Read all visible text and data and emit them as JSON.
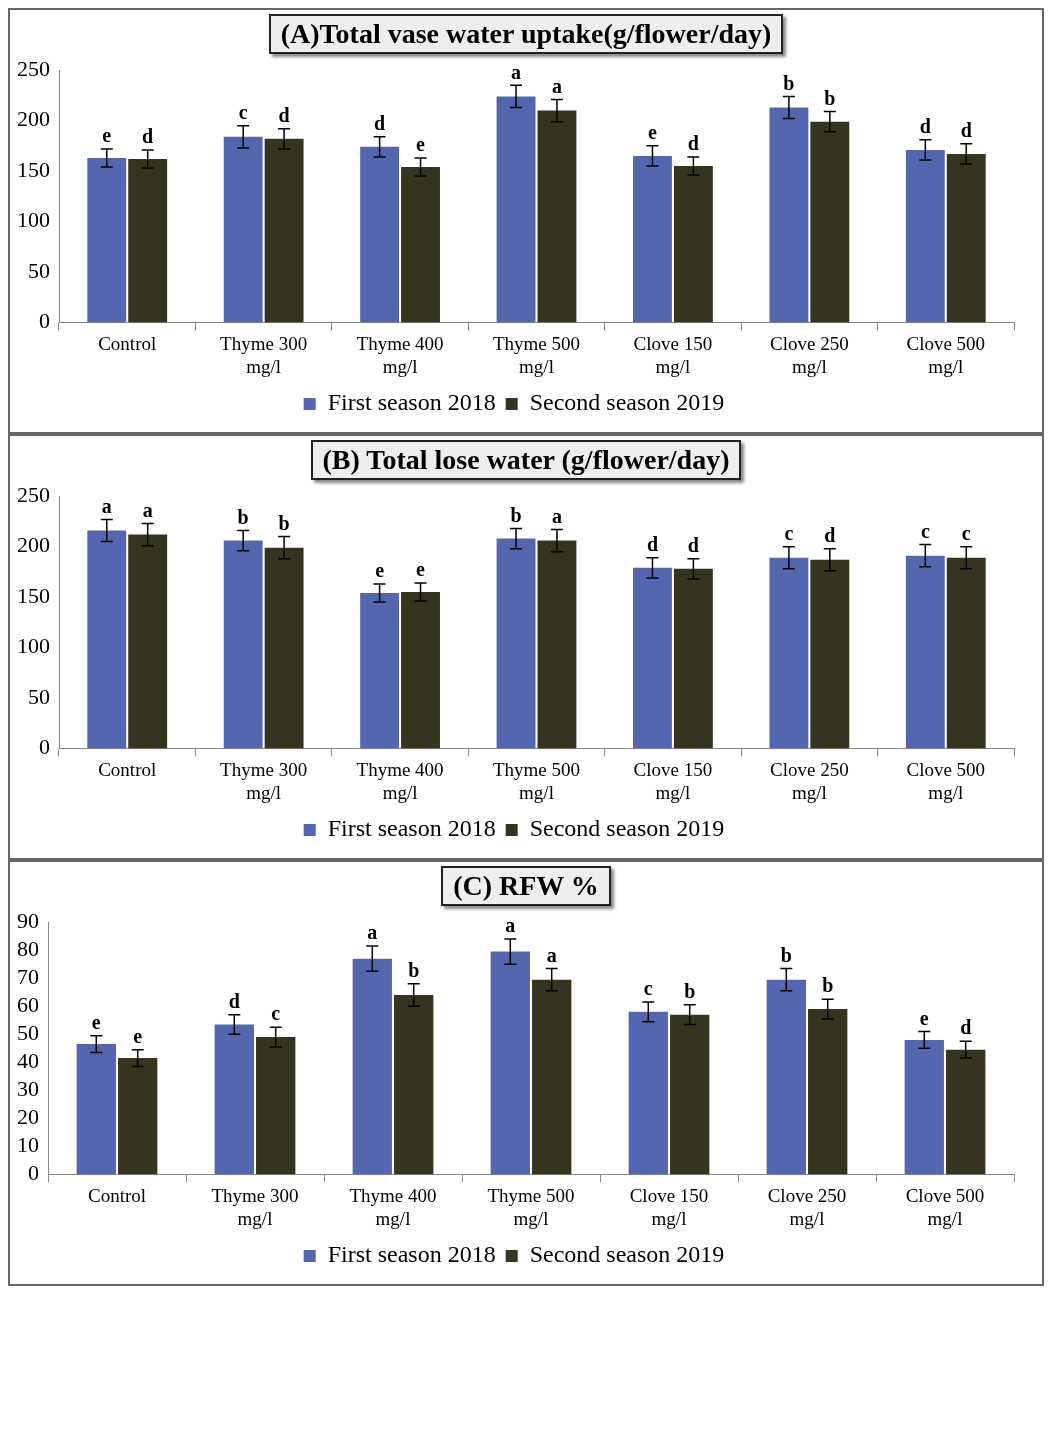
{
  "chart_data": [
    {
      "type": "bar",
      "title": "(A)Total vase water uptake(g/flower/day)",
      "categories": [
        "Control",
        "Thyme 300 mg/l",
        "Thyme 400 mg/l",
        "Thyme 500 mg/l",
        "Clove 150 mg/l",
        "Clove 250 mg/l",
        "Clove 500 mg/l"
      ],
      "ylim": [
        0,
        250
      ],
      "yticks": [
        0,
        50,
        100,
        150,
        200,
        250
      ],
      "grid": false,
      "legend": "bottom",
      "series": [
        {
          "name": "First season 2018",
          "color": "#5566b0",
          "values": [
            163,
            184,
            174,
            224,
            165,
            213,
            171
          ],
          "errors": [
            9,
            11,
            10,
            11,
            10,
            11,
            10
          ],
          "value_labels": [
            "e",
            "c",
            "d",
            "a",
            "e",
            "b",
            "d"
          ]
        },
        {
          "name": "Second season 2019",
          "color": "#35341f",
          "values": [
            162,
            182,
            154,
            210,
            155,
            199,
            167
          ],
          "errors": [
            9,
            10,
            9,
            11,
            9,
            10,
            10
          ],
          "value_labels": [
            "d",
            "d",
            "e",
            "a",
            "d",
            "b",
            "d"
          ]
        }
      ]
    },
    {
      "type": "bar",
      "title": "(B) Total lose water (g/flower/day)",
      "categories": [
        "Control",
        "Thyme 300 mg/l",
        "Thyme 400 mg/l",
        "Thyme 500 mg/l",
        "Clove 150 mg/l",
        "Clove 250 mg/l",
        "Clove 500 mg/l"
      ],
      "ylim": [
        0,
        250
      ],
      "yticks": [
        0,
        50,
        100,
        150,
        200,
        250
      ],
      "grid": false,
      "legend": "bottom",
      "series": [
        {
          "name": "First season 2018",
          "color": "#5566b0",
          "values": [
            216,
            206,
            154,
            208,
            179,
            189,
            191
          ],
          "errors": [
            11,
            10,
            9,
            10,
            10,
            11,
            11
          ],
          "value_labels": [
            "a",
            "b",
            "e",
            "b",
            "d",
            "c",
            "c"
          ]
        },
        {
          "name": "Second season 2019",
          "color": "#35341f",
          "values": [
            212,
            199,
            155,
            206,
            178,
            187,
            189
          ],
          "errors": [
            11,
            11,
            9,
            11,
            10,
            11,
            11
          ],
          "value_labels": [
            "a",
            "b",
            "e",
            "a",
            "d",
            "d",
            "c"
          ]
        }
      ]
    },
    {
      "type": "bar",
      "title": "(C) RFW %",
      "categories": [
        "Control",
        "Thyme 300 mg/l",
        "Thyme 400 mg/l",
        "Thyme 500 mg/l",
        "Clove 150 mg/l",
        "Clove 250 mg/l",
        "Clove 500 mg/l"
      ],
      "ylim": [
        0,
        90
      ],
      "yticks": [
        0,
        10,
        20,
        30,
        40,
        50,
        60,
        70,
        80,
        90
      ],
      "grid": false,
      "legend": "bottom",
      "series": [
        {
          "name": "First season 2018",
          "color": "#5566b0",
          "values": [
            46.5,
            53.5,
            77,
            79.5,
            58,
            69.5,
            48
          ],
          "errors": [
            3,
            3.5,
            4.5,
            4.5,
            3.5,
            4,
            3
          ],
          "value_labels": [
            "e",
            "d",
            "a",
            "a",
            "c",
            "b",
            "e"
          ]
        },
        {
          "name": "Second season 2019",
          "color": "#35341f",
          "values": [
            41.5,
            49,
            64,
            69.5,
            57,
            59,
            44.5
          ],
          "errors": [
            3,
            3.5,
            4,
            4,
            3.5,
            3.5,
            3
          ],
          "value_labels": [
            "e",
            "c",
            "b",
            "a",
            "b",
            "b",
            "d"
          ]
        }
      ]
    }
  ]
}
